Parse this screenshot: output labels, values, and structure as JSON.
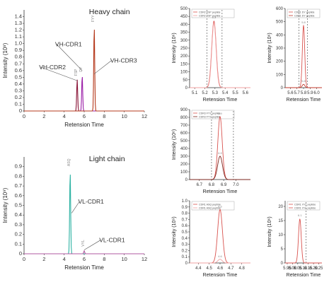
{
  "chart_data": [
    {
      "id": "heavy",
      "type": "line",
      "title": "Heavy chain",
      "xlabel": "Retension Time",
      "ylabel": "Intensity (10⁸)",
      "xlim": [
        0,
        12
      ],
      "ylim": [
        0,
        1.5
      ],
      "xticks": [
        0,
        2,
        4,
        6,
        8,
        10,
        12
      ],
      "yticks": [
        0,
        0.1,
        0.2,
        0.3,
        0.4,
        0.5,
        0.6,
        0.7,
        0.8,
        0.9,
        1.0,
        1.1,
        1.2,
        1.3,
        1.4
      ],
      "ytick_labels": [
        "0",
        "0.1",
        "0.2",
        "0.3",
        "0.4",
        "0.5",
        "0.6",
        "0.7",
        "0.8",
        "0.9",
        "1.0",
        "1.1",
        "1.2",
        "1.3",
        "1.4"
      ],
      "series": [
        {
          "color": "#8a1538",
          "peaks": [
            {
              "x": 5.3,
              "y": 0.47
            }
          ]
        },
        {
          "color": "#9b1fa8",
          "peaks": [
            {
              "x": 5.8,
              "y": 0.53
            }
          ]
        },
        {
          "color": "#b5391c",
          "peaks": [
            {
              "x": 7.0,
              "y": 1.27
            }
          ]
        }
      ],
      "annotations": [
        {
          "text": "VH-CDR1",
          "x": 3.1,
          "y": 0.96,
          "ax": 5.8,
          "ay": 0.6
        },
        {
          "text": "VH-CDR2",
          "x": 1.5,
          "y": 0.62,
          "ax": 5.3,
          "ay": 0.45
        },
        {
          "text": "VH-CDR3",
          "x": 8.6,
          "y": 0.72,
          "ax": 7.0,
          "ay": 0.55
        }
      ],
      "peak_labels": [
        {
          "text": "FSP",
          "x": 5.3,
          "y": 0.5
        },
        {
          "text": "DY",
          "x": 5.8,
          "y": 0.56
        },
        {
          "text": "FYY",
          "x": 7.0,
          "y": 1.3
        }
      ]
    },
    {
      "id": "light",
      "type": "line",
      "title": "Light chain",
      "xlabel": "Retension Time",
      "ylabel": "Intensity (10⁹)",
      "xlim": [
        0,
        12
      ],
      "ylim": [
        0,
        1.0
      ],
      "xticks": [
        0,
        2,
        4,
        6,
        8,
        10,
        12
      ],
      "yticks": [
        0,
        0.1,
        0.2,
        0.3,
        0.4,
        0.5,
        0.6,
        0.7,
        0.8,
        0.9
      ],
      "ytick_labels": [
        "0",
        "0.1",
        "0.2",
        "0.3",
        "0.4",
        "0.5",
        "0.6",
        "0.7",
        "0.8",
        "0.9"
      ],
      "series": [
        {
          "color": "#2fb3a4",
          "peaks": [
            {
              "x": 4.6,
              "y": 0.86
            }
          ]
        },
        {
          "color": "#b05aa0",
          "peaks": [
            {
              "x": 6.0,
              "y": 0.03
            }
          ]
        }
      ],
      "annotations": [
        {
          "text": "VL-CDR1",
          "x": 5.4,
          "y": 0.52,
          "ax": 4.75,
          "ay": 0.42
        },
        {
          "text": "VL-CDR1",
          "x": 7.5,
          "y": 0.12,
          "ax": 6.0,
          "ay": 0.04
        }
      ],
      "peak_labels": [
        {
          "text": "ASQ",
          "x": 4.6,
          "y": 0.89
        },
        {
          "text": "VYL",
          "x": 6.0,
          "y": 0.06
        }
      ]
    },
    {
      "id": "z1",
      "type": "line",
      "xlabel": "Retension Time",
      "ylabel": "Intensity (10⁶)",
      "xlim": [
        5.05,
        5.65
      ],
      "ylim": [
        0,
        500
      ],
      "xticks": [
        5.1,
        5.2,
        5.3,
        5.4,
        5.5,
        5.6
      ],
      "xtick_labels": [
        "5.1",
        "5.2",
        "5.3",
        "5.4",
        "5.5",
        "5.6"
      ],
      "yticks": [
        0,
        50,
        100,
        150,
        200,
        250,
        300,
        350,
        400,
        450,
        500
      ],
      "ytick_labels": [
        "0",
        "50",
        "100",
        "150",
        "200",
        "250",
        "300",
        "350",
        "400",
        "450",
        "500"
      ],
      "vlines": [
        5.22,
        5.37
      ],
      "legend": [
        "CDR2 FSP peptide",
        "CDR2 FSP peptide"
      ],
      "series": [
        {
          "color": "#d9534f",
          "peaks": [
            {
              "x": 5.29,
              "y": 420,
              "w": 0.022
            }
          ]
        },
        {
          "color": "#f0a0a0",
          "peaks": [
            {
              "x": 5.29,
              "y": 410,
              "w": 0.021
            }
          ]
        }
      ],
      "peak_labels": [
        {
          "text": "5.3",
          "x": 5.29,
          "y": 428
        }
      ]
    },
    {
      "id": "z2",
      "type": "line",
      "xlabel": "Retension Time",
      "ylabel": "Intensity (10⁶)",
      "xlim": [
        5.52,
        6.08
      ],
      "ylim": [
        0,
        600
      ],
      "xticks": [
        5.6,
        5.7,
        5.8,
        5.9,
        6.0
      ],
      "xtick_labels": [
        "5.6",
        "5.7",
        "5.8",
        "5.9",
        "6.0"
      ],
      "yticks": [
        0,
        100,
        200,
        300,
        400,
        500,
        600
      ],
      "ytick_labels": [
        "0",
        "100",
        "200",
        "300",
        "400",
        "500",
        "600"
      ],
      "vlines": [
        5.73,
        5.86
      ],
      "legend": [
        "CDR1 DY peptide",
        "CDR1 DY peptide"
      ],
      "series": [
        {
          "color": "#d9534f",
          "peaks": [
            {
              "x": 5.8,
              "y": 470,
              "w": 0.018
            }
          ]
        },
        {
          "color": "#c0392b",
          "peaks": [
            {
              "x": 5.8,
              "y": 25,
              "w": 0.02
            }
          ]
        }
      ],
      "peak_labels": [
        {
          "text": "5.8",
          "x": 5.8,
          "y": 478
        },
        {
          "text": "5.8",
          "x": 5.8,
          "y": 32
        }
      ]
    },
    {
      "id": "z3",
      "type": "line",
      "xlabel": "Retension Time",
      "ylabel": "Intensity (10⁶)",
      "xlim": [
        6.62,
        7.12
      ],
      "ylim": [
        0,
        900
      ],
      "xticks": [
        6.7,
        6.8,
        6.9,
        7.0
      ],
      "xtick_labels": [
        "6.7",
        "6.8",
        "6.9",
        "7.0"
      ],
      "yticks": [
        0,
        100,
        200,
        300,
        400,
        500,
        600,
        700,
        800,
        900
      ],
      "ytick_labels": [
        "0",
        "100",
        "200",
        "300",
        "400",
        "500",
        "600",
        "700",
        "800",
        "900"
      ],
      "vlines": [
        6.8,
        6.98
      ],
      "legend": [
        "CDR3 FYY peptide",
        "CDR3 FYY peptide"
      ],
      "series": [
        {
          "color": "#d9534f",
          "peaks": [
            {
              "x": 6.87,
              "y": 810,
              "w": 0.018
            }
          ]
        },
        {
          "color": "#7b241c",
          "peaks": [
            {
              "x": 6.87,
              "y": 300,
              "w": 0.02
            }
          ]
        }
      ],
      "peak_labels": [
        {
          "text": "6.9",
          "x": 6.87,
          "y": 818
        },
        {
          "text": "6.9",
          "x": 6.87,
          "y": 308
        }
      ]
    },
    {
      "id": "z4",
      "type": "line",
      "xlabel": "Retension Time",
      "ylabel": "Intensity (10⁹)",
      "xlim": [
        4.32,
        4.88
      ],
      "ylim": [
        0,
        1.0
      ],
      "xticks": [
        4.4,
        4.5,
        4.6,
        4.7,
        4.8
      ],
      "xtick_labels": [
        "4.4",
        "4.5",
        "4.6",
        "4.7",
        "4.8"
      ],
      "yticks": [
        0,
        0.1,
        0.2,
        0.3,
        0.4,
        0.5,
        0.6,
        0.7,
        0.8,
        0.9,
        1.0
      ],
      "ytick_labels": [
        "0",
        "0.1",
        "0.2",
        "0.3",
        "0.4",
        "0.5",
        "0.6",
        "0.7",
        "0.8",
        "0.9",
        "1.0"
      ],
      "vlines": [],
      "legend": [
        "CDR1 ASQ peptide",
        "CDR1 ASQ peptide"
      ],
      "series": [
        {
          "color": "#d9534f",
          "peaks": [
            {
              "x": 4.6,
              "y": 0.86,
              "w": 0.022
            }
          ]
        },
        {
          "color": "#f0a0a0",
          "peaks": [
            {
              "x": 4.6,
              "y": 0.06,
              "w": 0.02
            }
          ]
        }
      ],
      "peak_labels": [
        {
          "text": "4.6",
          "x": 4.6,
          "y": 0.87
        },
        {
          "text": "4.6",
          "x": 4.6,
          "y": 0.07
        }
      ]
    },
    {
      "id": "z5",
      "type": "line",
      "xlabel": "Retension Time",
      "ylabel": "Intensity (10⁶)",
      "xlim": [
        5.93,
        6.28
      ],
      "ylim": [
        0,
        22
      ],
      "xticks": [
        5.95,
        6.0,
        6.05,
        6.1,
        6.15,
        6.2,
        6.25
      ],
      "xtick_labels": [
        "5.95",
        "6.00",
        "6.05",
        "6.10",
        "6.15",
        "6.20",
        "6.25"
      ],
      "yticks": [
        0,
        5,
        10,
        15,
        20
      ],
      "ytick_labels": [
        "0",
        "5",
        "10",
        "15",
        "20"
      ],
      "vlines": [
        6.13
      ],
      "legend": [
        "CDR1 VYL peptide",
        "CDR1 VYL peptide"
      ],
      "series": [
        {
          "color": "#d9534f",
          "peaks": [
            {
              "x": 6.07,
              "y": 15.5,
              "w": 0.013
            }
          ]
        }
      ],
      "peak_labels": [
        {
          "text": "6.1",
          "x": 6.07,
          "y": 16
        }
      ]
    }
  ]
}
